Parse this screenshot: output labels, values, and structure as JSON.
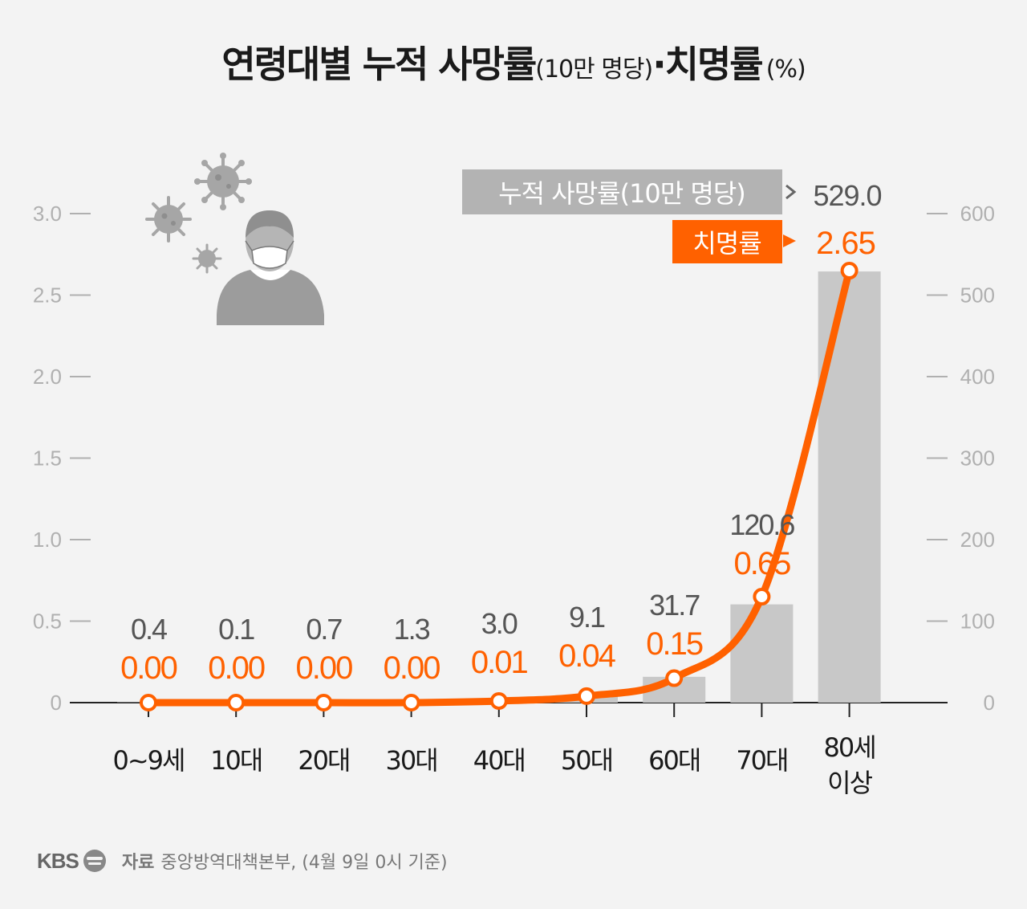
{
  "title": {
    "main_prefix": "연령대별 누적 사망률",
    "prefix_note": "(10만 명당)",
    "separator": "·",
    "main_suffix": "치명률",
    "suffix_note": "(%)"
  },
  "colors": {
    "background": "#f3f3f3",
    "bar": "#c8c8c8",
    "line": "#ff6100",
    "bar_label": "#555555",
    "axis_text": "#b0b0b0",
    "legend_bar_box": "#b3b3b3",
    "legend_line_box": "#ff6100"
  },
  "chart_data": {
    "type": "bar+line",
    "categories": [
      "0~9세",
      "10대",
      "20대",
      "30대",
      "40대",
      "50대",
      "60대",
      "70대",
      "80세 이상"
    ],
    "series": [
      {
        "name": "누적 사망률(10만 명당)",
        "type": "bar",
        "axis": "right",
        "values": [
          0.4,
          0.1,
          0.7,
          1.3,
          3.0,
          9.1,
          31.7,
          120.6,
          529.0
        ],
        "labels": [
          "0.4",
          "0.1",
          "0.7",
          "1.3",
          "3.0",
          "9.1",
          "31.7",
          "120.6",
          "529.0"
        ]
      },
      {
        "name": "치명률",
        "type": "line",
        "axis": "left",
        "values": [
          0.0,
          0.0,
          0.0,
          0.0,
          0.01,
          0.04,
          0.15,
          0.65,
          2.65
        ],
        "labels": [
          "0.00",
          "0.00",
          "0.00",
          "0.00",
          "0.01",
          "0.04",
          "0.15",
          "0.65",
          "2.65"
        ]
      }
    ],
    "left_axis": {
      "ylim": [
        0,
        3.0
      ],
      "ticks": [
        "0",
        "0.5",
        "1.0",
        "1.5",
        "2.0",
        "2.5",
        "3.0"
      ]
    },
    "right_axis": {
      "ylim": [
        0,
        600
      ],
      "ticks": [
        "0",
        "100",
        "200",
        "300",
        "400",
        "500",
        "600"
      ]
    },
    "grid": false,
    "legend_position": "top-right"
  },
  "footer": {
    "logo": "KBS",
    "source_label": "자료",
    "source_text": "중앙방역대책본부, (4월 9일 0시 기준)"
  },
  "icons": [
    "virus-icon",
    "masked-person-icon",
    "kbs-logo-icon"
  ]
}
